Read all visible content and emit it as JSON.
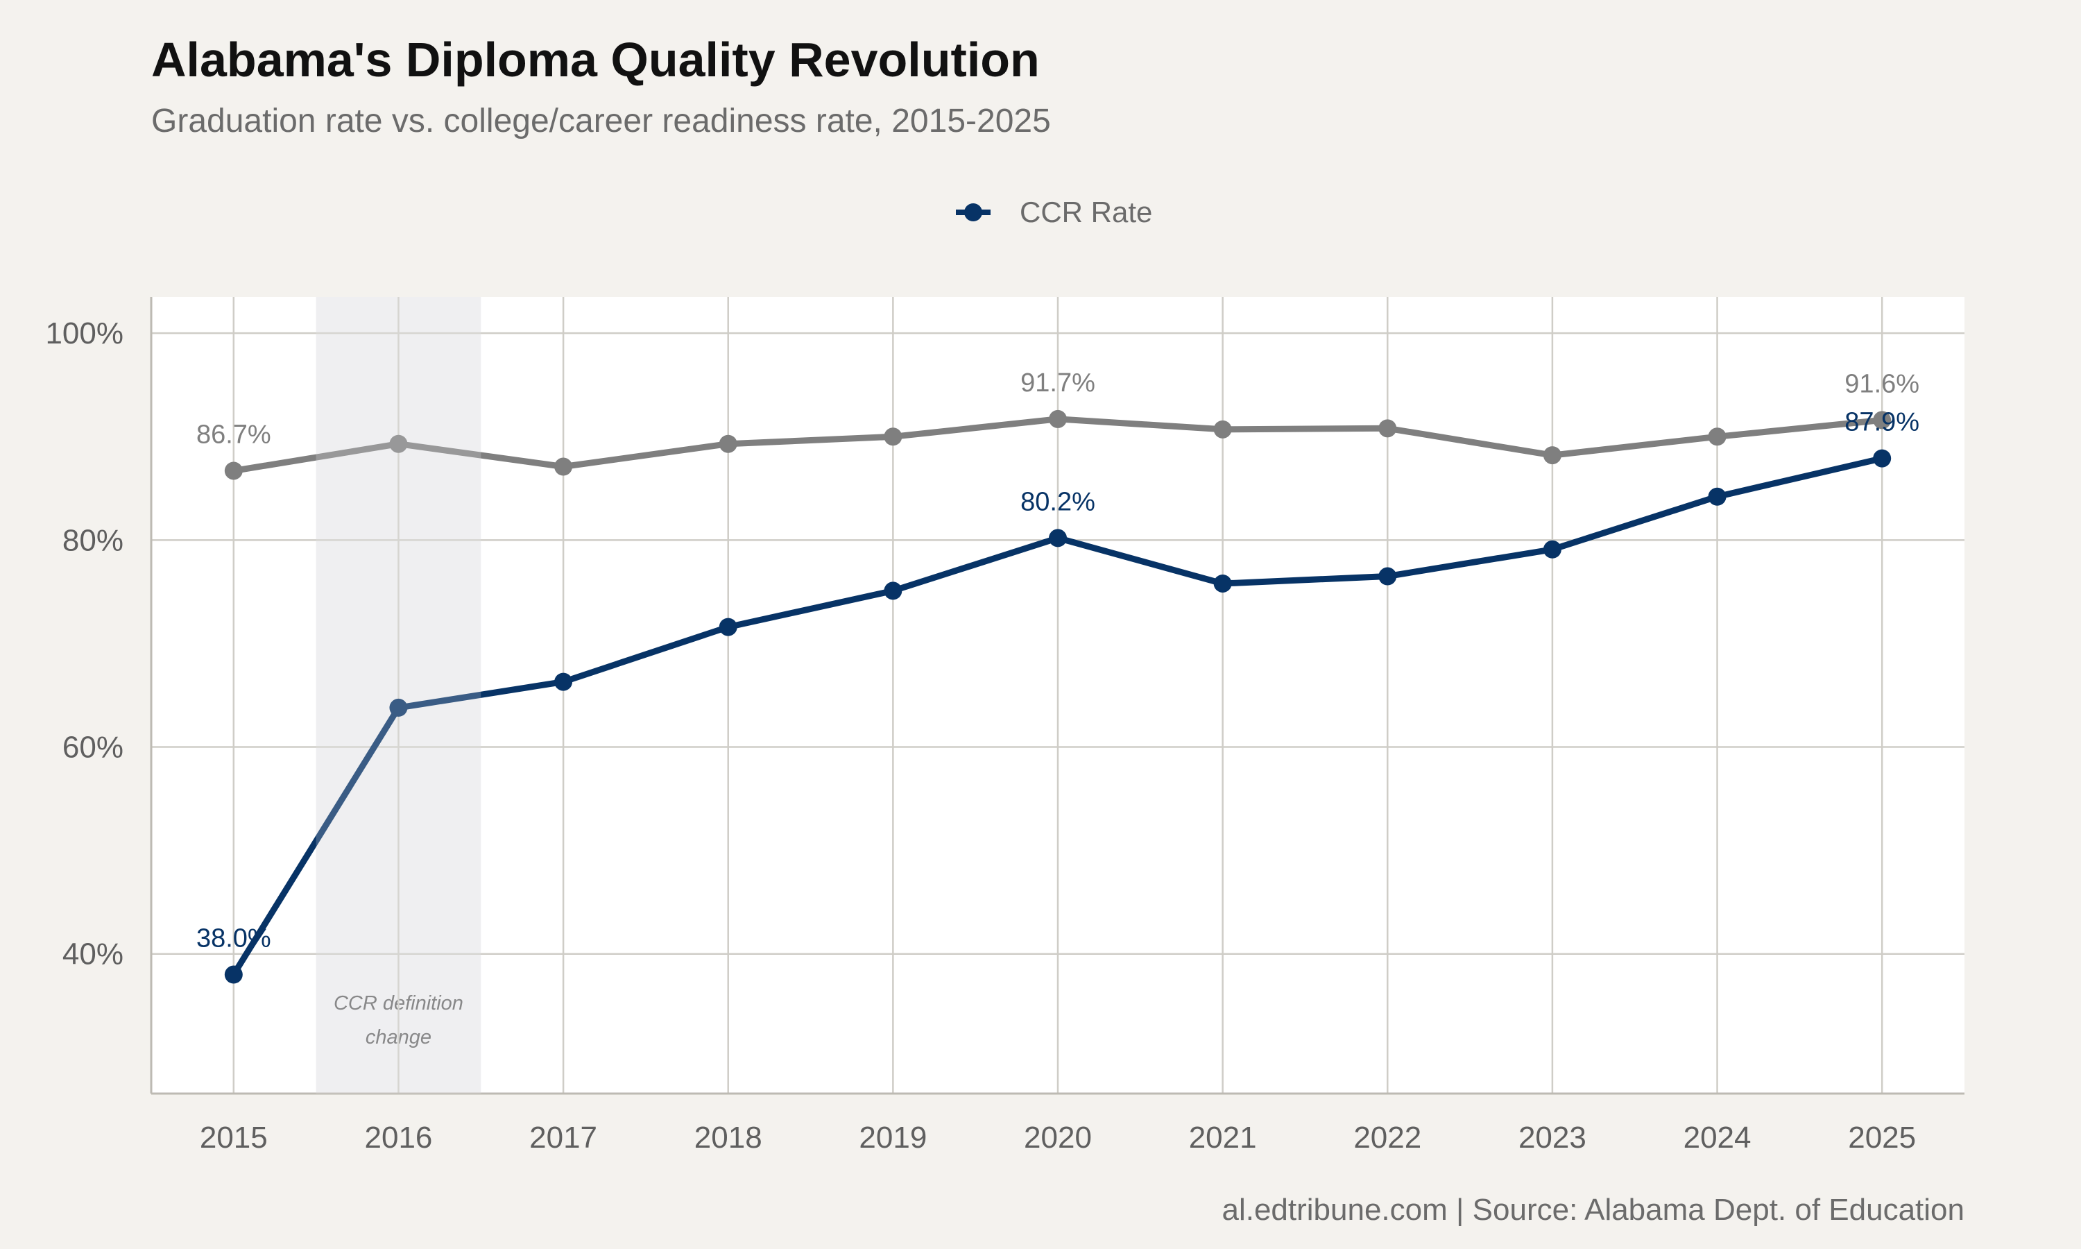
{
  "chart_data": {
    "type": "line",
    "title": "Alabama's Diploma Quality Revolution",
    "subtitle": "Graduation rate vs. college/career readiness rate, 2015-2025",
    "caption": "al.edtribune.com | Source: Alabama Dept. of Education",
    "x": [
      2015,
      2016,
      2017,
      2018,
      2019,
      2020,
      2021,
      2022,
      2023,
      2024,
      2025
    ],
    "series": [
      {
        "key": "grad",
        "values": [
          86.7,
          89.3,
          87.1,
          89.3,
          90.0,
          91.7,
          90.7,
          90.8,
          88.2,
          90.0,
          91.6
        ],
        "color": "#7f7f7f",
        "labeled_points": [
          {
            "x": 2015,
            "label": "86.7%"
          },
          {
            "x": 2020,
            "label": "91.7%"
          },
          {
            "x": 2025,
            "label": "91.6%"
          }
        ]
      },
      {
        "key": "ccr",
        "name": "CCR Rate",
        "values": [
          38.0,
          63.8,
          66.3,
          71.6,
          75.1,
          80.2,
          75.8,
          76.5,
          79.1,
          84.2,
          87.9
        ],
        "color": "#073366",
        "labeled_points": [
          {
            "x": 2015,
            "label": "38.0%"
          },
          {
            "x": 2020,
            "label": "80.2%"
          },
          {
            "x": 2025,
            "label": "87.9%"
          }
        ]
      }
    ],
    "legend": {
      "position": "top",
      "entries": [
        "CCR Rate"
      ]
    },
    "y_ticks": [
      {
        "value": 40,
        "label": "40%"
      },
      {
        "value": 60,
        "label": "60%"
      },
      {
        "value": 80,
        "label": "80%"
      },
      {
        "value": 100,
        "label": "100%"
      }
    ],
    "ylim": [
      26.5,
      103.5
    ],
    "xlim": [
      2014.5,
      2025.5
    ],
    "grid": true,
    "highlight_band": {
      "x_from": 2015.5,
      "x_to": 2016.5,
      "color": "#efeff0",
      "annotation": [
        "CCR definition",
        "change"
      ]
    }
  }
}
